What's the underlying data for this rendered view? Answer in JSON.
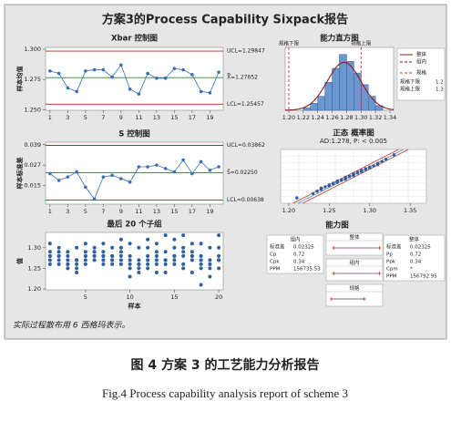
{
  "title": "方案3的Process Capability Sixpack报告",
  "note": "实际过程散布用 6 西格玛表示。",
  "caption_cn": "图 4   方案 3 的工艺能力分析报告",
  "caption_en": "Fig.4  Process capability analysis report of scheme 3",
  "chart_data": [
    {
      "type": "control",
      "title": "Xbar 控制图",
      "y_label": "样本均值",
      "x": [
        1,
        2,
        3,
        4,
        5,
        6,
        7,
        8,
        9,
        10,
        11,
        12,
        13,
        14,
        15,
        16,
        17,
        18,
        19,
        20
      ],
      "values": [
        1.282,
        1.28,
        1.268,
        1.265,
        1.282,
        1.283,
        1.283,
        1.277,
        1.287,
        1.267,
        1.263,
        1.28,
        1.276,
        1.276,
        1.284,
        1.283,
        1.279,
        1.265,
        1.264,
        1.281
      ],
      "color": "#3c6eb4",
      "xlim": [
        0.5,
        20.5
      ],
      "xticks": [
        1,
        3,
        5,
        7,
        9,
        11,
        13,
        15,
        17,
        19
      ],
      "ylim": [
        1.2495,
        1.3015
      ],
      "yticks": [
        {
          "value": 1.3,
          "label": "1.300"
        },
        {
          "value": 1.275,
          "label": "1.275"
        },
        {
          "value": 1.25,
          "label": "1.250"
        }
      ],
      "limits": [
        {
          "value": 1.29847,
          "label": "UCL=1.29847",
          "color": "#b22222"
        },
        {
          "value": 1.27652,
          "label": "X̿=1.27652",
          "color": "#2e7d32"
        },
        {
          "value": 1.25457,
          "label": "LCL=1.25457",
          "color": "#b22222"
        }
      ]
    },
    {
      "type": "control",
      "title": "S 控制图",
      "y_label": "样本标准差",
      "x": [
        1,
        2,
        3,
        4,
        5,
        6,
        7,
        8,
        9,
        10,
        11,
        12,
        13,
        14,
        15,
        16,
        17,
        18,
        19,
        20
      ],
      "values": [
        0.022,
        0.018,
        0.02,
        0.023,
        0.014,
        0.007,
        0.02,
        0.021,
        0.019,
        0.017,
        0.026,
        0.026,
        0.027,
        0.025,
        0.023,
        0.03,
        0.022,
        0.029,
        0.024,
        0.026
      ],
      "color": "#3c6eb4",
      "xlim": [
        0.5,
        20.5
      ],
      "xticks": [
        1,
        3,
        5,
        7,
        9,
        11,
        13,
        15,
        17,
        19
      ],
      "ylim": [
        0.004,
        0.0405
      ],
      "yticks": [
        {
          "value": 0.039,
          "label": "0.039"
        },
        {
          "value": 0.027,
          "label": "0.027"
        },
        {
          "value": 0.015,
          "label": "0.015"
        }
      ],
      "limits": [
        {
          "value": 0.03862,
          "label": "UCL=0.03862",
          "color": "#b22222"
        },
        {
          "value": 0.0225,
          "label": "S̄=0.02250",
          "color": "#2e7d32"
        },
        {
          "value": 0.00638,
          "label": "LCL=0.00638",
          "color": "#b22222"
        }
      ]
    },
    {
      "type": "strip",
      "title": "最后 20 个子组",
      "y_label": "值",
      "x_label": "样本",
      "color": "#2f5f9e",
      "x": [
        1,
        2,
        3,
        4,
        5,
        6,
        7,
        8,
        9,
        10,
        11,
        12,
        13,
        14,
        15,
        16,
        17,
        18,
        19,
        20
      ],
      "values": [
        [
          1.31,
          1.29,
          1.28,
          1.27,
          1.26,
          1.28
        ],
        [
          1.3,
          1.29,
          1.28,
          1.27,
          1.26,
          1.28
        ],
        [
          1.29,
          1.28,
          1.27,
          1.26,
          1.25,
          1.26
        ],
        [
          1.3,
          1.27,
          1.26,
          1.25,
          1.24,
          1.27
        ],
        [
          1.31,
          1.29,
          1.28,
          1.27,
          1.26,
          1.28
        ],
        [
          1.3,
          1.29,
          1.28,
          1.28,
          1.27,
          1.29
        ],
        [
          1.31,
          1.29,
          1.28,
          1.27,
          1.26,
          1.28
        ],
        [
          1.3,
          1.28,
          1.27,
          1.27,
          1.26,
          1.28
        ],
        [
          1.32,
          1.3,
          1.29,
          1.28,
          1.27,
          1.26
        ],
        [
          1.31,
          1.28,
          1.26,
          1.25,
          1.23,
          1.27
        ],
        [
          1.3,
          1.27,
          1.26,
          1.25,
          1.24,
          1.26
        ],
        [
          1.32,
          1.3,
          1.28,
          1.27,
          1.25,
          1.26
        ],
        [
          1.31,
          1.29,
          1.27,
          1.26,
          1.24,
          1.28
        ],
        [
          1.33,
          1.29,
          1.27,
          1.26,
          1.24,
          1.27
        ],
        [
          1.32,
          1.3,
          1.28,
          1.27,
          1.26,
          1.28
        ],
        [
          1.33,
          1.3,
          1.28,
          1.26,
          1.25,
          1.29
        ],
        [
          1.31,
          1.29,
          1.28,
          1.27,
          1.24,
          1.28
        ],
        [
          1.31,
          1.28,
          1.26,
          1.25,
          1.21,
          1.27
        ],
        [
          1.3,
          1.27,
          1.26,
          1.25,
          1.23,
          1.26
        ],
        [
          1.33,
          1.3,
          1.28,
          1.27,
          1.25,
          1.27
        ]
      ],
      "xlim": [
        0.5,
        20.5
      ],
      "xticks": [
        5,
        10,
        15,
        20
      ],
      "ylim": [
        1.198,
        1.337
      ],
      "yticks": [
        {
          "value": 1.3,
          "label": "1.30"
        },
        {
          "value": 1.25,
          "label": "1.25"
        },
        {
          "value": 1.2,
          "label": "1.20"
        }
      ]
    },
    {
      "type": "histogram",
      "title": "能力直方图",
      "color": "#6b96cf",
      "bins": [
        1.22,
        1.23,
        1.24,
        1.25,
        1.26,
        1.27,
        1.28,
        1.29,
        1.3,
        1.31,
        1.32,
        1.33
      ],
      "counts": [
        1,
        3,
        6,
        12,
        18,
        24,
        21,
        16,
        11,
        6,
        2
      ],
      "xlim": [
        1.195,
        1.345
      ],
      "ylim": [
        0,
        27
      ],
      "xticks": [
        {
          "value": 1.2,
          "label": "1.20"
        },
        1.22,
        1.24,
        1.26,
        1.28,
        {
          "value": 1.3,
          "label": "1.30"
        },
        1.32,
        1.34
      ],
      "lsl": {
        "label": "规格下限",
        "value": 1.2
      },
      "usl": {
        "label": "规格上限",
        "value": 1.3
      },
      "spec_color": "#c0392b",
      "legend": [
        {
          "name": "整体",
          "color": "#8b1a1a"
        },
        {
          "name": "组内",
          "color": "#8b1a1a",
          "dashed": true
        }
      ],
      "spec_title": "规格"
    },
    {
      "type": "probability",
      "title": "正态 概率图",
      "subtitle": "AD:1.278, P: < 0.005",
      "color": "#2f5f9e",
      "values": [
        1.21,
        1.23,
        1.235,
        1.24,
        1.24,
        1.245,
        1.25,
        1.25,
        1.255,
        1.255,
        1.26,
        1.26,
        1.26,
        1.265,
        1.265,
        1.27,
        1.27,
        1.27,
        1.27,
        1.275,
        1.275,
        1.28,
        1.28,
        1.28,
        1.28,
        1.285,
        1.285,
        1.29,
        1.29,
        1.29,
        1.295,
        1.295,
        1.3,
        1.3,
        1.305,
        1.31,
        1.31,
        1.315,
        1.32,
        1.33
      ],
      "xlim": [
        1.19,
        1.37
      ],
      "xticks": [
        {
          "value": 1.2,
          "label": "1.20"
        },
        1.25,
        {
          "value": 1.3,
          "label": "1.30"
        },
        1.35
      ]
    },
    {
      "type": "capability",
      "title": "能力图",
      "within": {
        "title": "组内",
        "rows": [
          {
            "label": "标准差",
            "value": 0.02325
          },
          {
            "label": "Cp",
            "value": 0.72
          },
          {
            "label": "Cpk",
            "value": 0.34
          },
          {
            "label": "PPM",
            "value": 156735.53
          }
        ]
      },
      "overall": {
        "title": "整体",
        "rows": [
          {
            "label": "标准差",
            "value": 0.02325
          },
          {
            "label": "Pp",
            "value": 0.72
          },
          {
            "label": "Ppk",
            "value": 0.34
          },
          {
            "label": "Cpm",
            "value": "*"
          },
          {
            "label": "PPM",
            "value": 156792.95
          }
        ]
      },
      "panels": [
        "整体",
        "组内",
        "规格"
      ]
    }
  ]
}
